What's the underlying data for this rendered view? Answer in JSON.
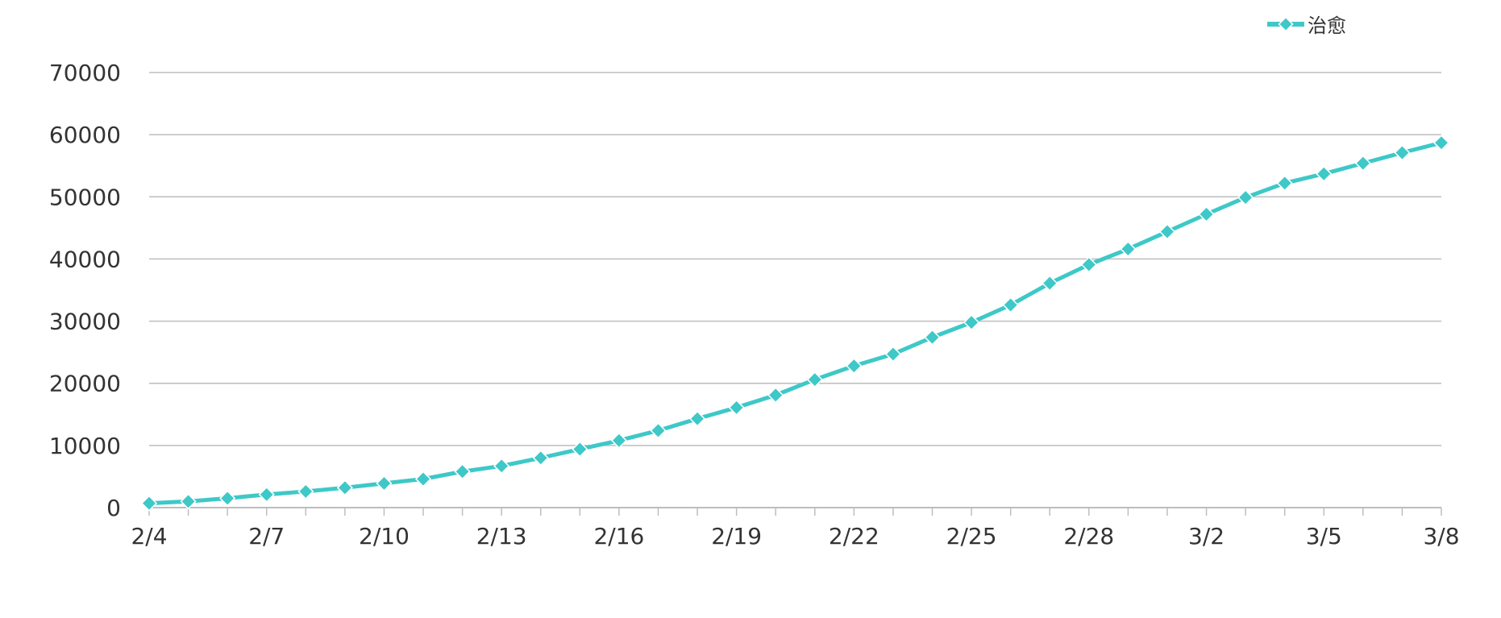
{
  "chart_data": {
    "type": "line",
    "x": [
      "2/4",
      "2/5",
      "2/6",
      "2/7",
      "2/8",
      "2/9",
      "2/10",
      "2/11",
      "2/12",
      "2/13",
      "2/14",
      "2/15",
      "2/16",
      "2/17",
      "2/18",
      "2/19",
      "2/20",
      "2/21",
      "2/22",
      "2/23",
      "2/24",
      "2/25",
      "2/26",
      "2/27",
      "2/28",
      "2/29",
      "3/1",
      "3/2",
      "3/3",
      "3/4",
      "3/5",
      "3/6",
      "3/7",
      "3/8"
    ],
    "x_tick_labels": [
      "2/4",
      "2/7",
      "2/10",
      "2/13",
      "2/16",
      "2/19",
      "2/22",
      "2/25",
      "2/28",
      "3/2",
      "3/5",
      "3/8"
    ],
    "series": [
      {
        "name": "治愈",
        "values": [
          700,
          1000,
          1500,
          2100,
          2600,
          3200,
          3900,
          4600,
          5800,
          6700,
          8000,
          9400,
          10800,
          12400,
          14300,
          16100,
          18100,
          20600,
          22800,
          24700,
          27400,
          29800,
          32600,
          36100,
          39100,
          41600,
          44400,
          47200,
          49900,
          52200,
          53700,
          55400,
          57100,
          58700
        ]
      }
    ],
    "ylim": [
      0,
      70000
    ],
    "y_ticks": [
      0,
      10000,
      20000,
      30000,
      40000,
      50000,
      60000,
      70000
    ],
    "y_tick_labels": [
      "0",
      "10000",
      "20000",
      "30000",
      "40000",
      "50000",
      "60000",
      "70000"
    ],
    "grid": true,
    "legend_position": "top-right",
    "title": "",
    "xlabel": "",
    "ylabel": "",
    "colors": {
      "series": "#3EC8C8",
      "grid": "#BDBDBD",
      "axis": "#BDBDBD",
      "text": "#333333"
    }
  }
}
